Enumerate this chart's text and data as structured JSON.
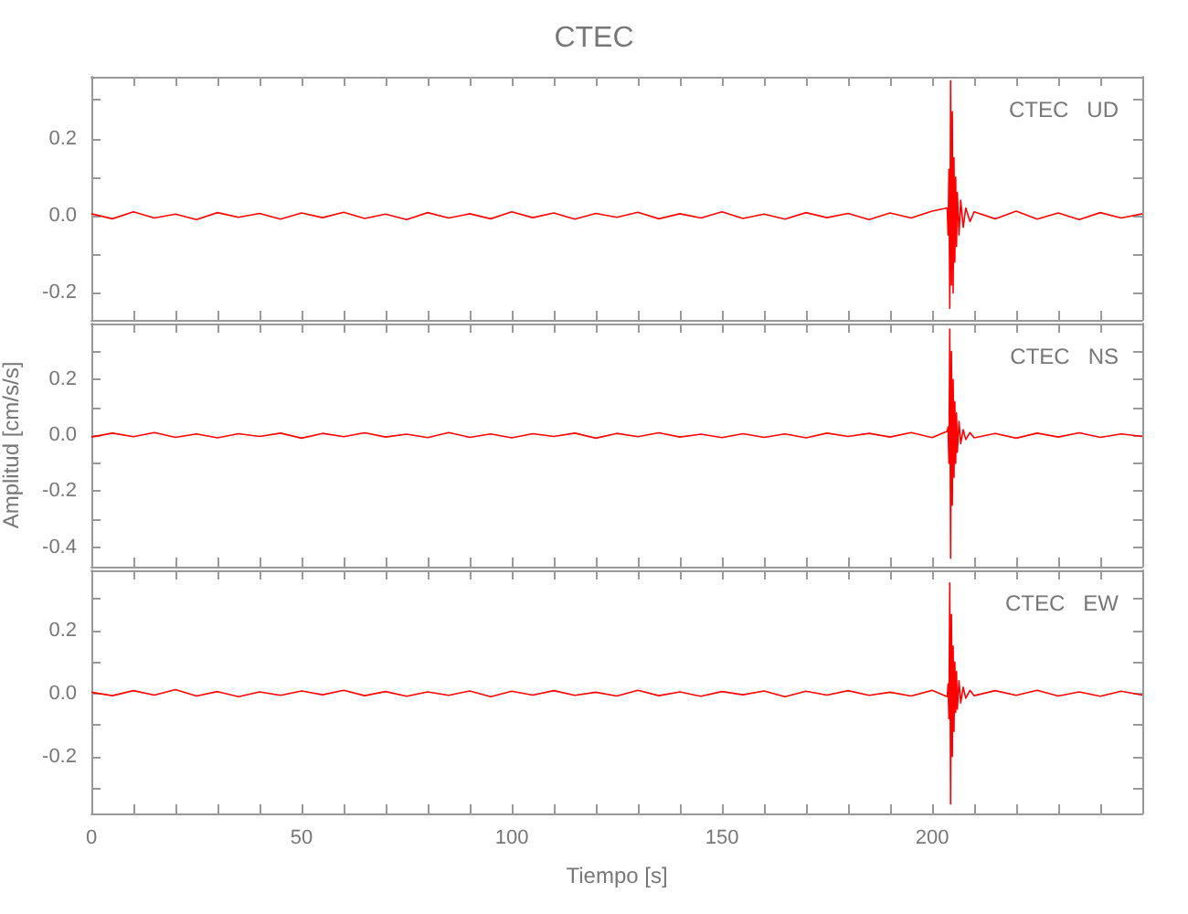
{
  "chart_data": [
    {
      "type": "line",
      "title": "CTEC",
      "annotations": [
        "CTEC   UD"
      ],
      "tick_labels": "y",
      "grid": false,
      "x": [
        0,
        5,
        10,
        15,
        20,
        25,
        30,
        35,
        40,
        45,
        50,
        55,
        60,
        65,
        70,
        75,
        80,
        85,
        90,
        95,
        100,
        105,
        110,
        115,
        120,
        125,
        130,
        135,
        140,
        145,
        150,
        155,
        160,
        165,
        170,
        175,
        180,
        185,
        190,
        195,
        200,
        203.6,
        203.8,
        204,
        204.2,
        204.4,
        204.6,
        204.8,
        205,
        205.2,
        205.4,
        205.6,
        205.8,
        206,
        206.4,
        206.8,
        207.4,
        208,
        209,
        210,
        215,
        220,
        225,
        230,
        235,
        240,
        245,
        250
      ],
      "series": [
        {
          "color": "#ff0000",
          "values": [
            0.005,
            -0.008,
            0.01,
            -0.006,
            0.004,
            -0.01,
            0.008,
            -0.004,
            0.006,
            -0.009,
            0.007,
            -0.005,
            0.009,
            -0.007,
            0.004,
            -0.01,
            0.008,
            -0.006,
            0.005,
            -0.008,
            0.01,
            -0.005,
            0.007,
            -0.009,
            0.006,
            -0.004,
            0.009,
            -0.008,
            0.005,
            -0.006,
            0.01,
            -0.007,
            0.004,
            -0.009,
            0.008,
            -0.005,
            0.006,
            -0.01,
            0.007,
            -0.006,
            0.012,
            0.02,
            -0.05,
            0.12,
            -0.24,
            0.35,
            -0.18,
            0.27,
            -0.2,
            0.15,
            -0.12,
            0.1,
            -0.08,
            0.06,
            -0.05,
            0.04,
            -0.03,
            0.02,
            -0.015,
            0.01,
            -0.008,
            0.012,
            -0.009,
            0.007,
            -0.01,
            0.008,
            -0.006,
            0.005
          ]
        }
      ],
      "xlim": [
        0,
        250
      ],
      "xticks": [
        0,
        {
          "value": 10,
          "label": null
        },
        {
          "value": 20,
          "label": null
        },
        {
          "value": 30,
          "label": null
        },
        {
          "value": 40,
          "label": null
        },
        50,
        {
          "value": 60,
          "label": null
        },
        {
          "value": 70,
          "label": null
        },
        {
          "value": 80,
          "label": null
        },
        {
          "value": 90,
          "label": null
        },
        100,
        {
          "value": 110,
          "label": null
        },
        {
          "value": 120,
          "label": null
        },
        {
          "value": 130,
          "label": null
        },
        {
          "value": 140,
          "label": null
        },
        150,
        {
          "value": 160,
          "label": null
        },
        {
          "value": 170,
          "label": null
        },
        {
          "value": 180,
          "label": null
        },
        {
          "value": 190,
          "label": null
        },
        200,
        {
          "value": 210,
          "label": null
        },
        {
          "value": 220,
          "label": null
        },
        {
          "value": 230,
          "label": null
        },
        {
          "value": 240,
          "label": null
        }
      ],
      "ylim": [
        -0.27,
        0.36
      ],
      "yticks": [
        -0.2,
        {
          "value": -0.1,
          "label": null
        },
        {
          "value": 0,
          "label": "0.0"
        },
        {
          "value": 0.1,
          "label": null
        },
        0.2,
        {
          "value": 0.3,
          "label": null
        }
      ]
    },
    {
      "type": "line",
      "ylabel": "Amplitud [cm/s/s]",
      "annotations": [
        "CTEC   NS"
      ],
      "tick_labels": "y",
      "grid": false,
      "x": [
        0,
        5,
        10,
        15,
        20,
        25,
        30,
        35,
        40,
        45,
        50,
        55,
        60,
        65,
        70,
        75,
        80,
        85,
        90,
        95,
        100,
        105,
        110,
        115,
        120,
        125,
        130,
        135,
        140,
        145,
        150,
        155,
        160,
        165,
        170,
        175,
        180,
        185,
        190,
        195,
        200,
        203.6,
        203.8,
        204,
        204.2,
        204.4,
        204.6,
        204.8,
        205,
        205.2,
        205.4,
        205.6,
        205.8,
        206,
        206.4,
        206.8,
        207.4,
        208,
        209,
        210,
        215,
        220,
        225,
        230,
        235,
        240,
        245,
        250
      ],
      "series": [
        {
          "color": "#ff0000",
          "values": [
            -0.006,
            0.008,
            -0.005,
            0.01,
            -0.007,
            0.005,
            -0.009,
            0.006,
            -0.004,
            0.008,
            -0.01,
            0.007,
            -0.005,
            0.009,
            -0.006,
            0.004,
            -0.008,
            0.01,
            -0.007,
            0.005,
            -0.009,
            0.006,
            -0.004,
            0.008,
            -0.01,
            0.007,
            -0.005,
            0.009,
            -0.006,
            0.004,
            -0.008,
            0.006,
            -0.007,
            0.005,
            -0.009,
            0.008,
            -0.004,
            0.007,
            -0.006,
            0.01,
            -0.008,
            0.015,
            0.03,
            -0.1,
            0.38,
            -0.44,
            0.3,
            -0.25,
            0.2,
            -0.15,
            0.12,
            -0.1,
            0.08,
            -0.06,
            0.05,
            -0.03,
            0.02,
            -0.015,
            0.01,
            -0.009,
            0.007,
            -0.01,
            0.008,
            -0.006,
            0.009,
            -0.007,
            0.005,
            -0.004
          ]
        }
      ],
      "xlim": [
        0,
        250
      ],
      "xticks": [
        0,
        {
          "value": 10,
          "label": null
        },
        {
          "value": 20,
          "label": null
        },
        {
          "value": 30,
          "label": null
        },
        {
          "value": 40,
          "label": null
        },
        50,
        {
          "value": 60,
          "label": null
        },
        {
          "value": 70,
          "label": null
        },
        {
          "value": 80,
          "label": null
        },
        {
          "value": 90,
          "label": null
        },
        100,
        {
          "value": 110,
          "label": null
        },
        {
          "value": 120,
          "label": null
        },
        {
          "value": 130,
          "label": null
        },
        {
          "value": 140,
          "label": null
        },
        150,
        {
          "value": 160,
          "label": null
        },
        {
          "value": 170,
          "label": null
        },
        {
          "value": 180,
          "label": null
        },
        {
          "value": 190,
          "label": null
        },
        200,
        {
          "value": 210,
          "label": null
        },
        {
          "value": 220,
          "label": null
        },
        {
          "value": 230,
          "label": null
        },
        {
          "value": 240,
          "label": null
        }
      ],
      "ylim": [
        -0.47,
        0.4
      ],
      "yticks": [
        -0.4,
        {
          "value": -0.3,
          "label": null
        },
        -0.2,
        {
          "value": -0.1,
          "label": null
        },
        {
          "value": 0,
          "label": "0.0"
        },
        {
          "value": 0.1,
          "label": null
        },
        0.2,
        {
          "value": 0.3,
          "label": null
        }
      ]
    },
    {
      "type": "line",
      "xlabel": "Tiempo [s]",
      "annotations": [
        "CTEC   EW"
      ],
      "grid": false,
      "x": [
        0,
        5,
        10,
        15,
        20,
        25,
        30,
        35,
        40,
        45,
        50,
        55,
        60,
        65,
        70,
        75,
        80,
        85,
        90,
        95,
        100,
        105,
        110,
        115,
        120,
        125,
        130,
        135,
        140,
        145,
        150,
        155,
        160,
        165,
        170,
        175,
        180,
        185,
        190,
        195,
        200,
        203.6,
        203.8,
        204,
        204.2,
        204.4,
        204.6,
        204.8,
        205,
        205.2,
        205.4,
        205.6,
        205.8,
        206,
        206.4,
        206.8,
        207.4,
        208,
        209,
        210,
        215,
        220,
        225,
        230,
        235,
        240,
        245,
        250
      ],
      "series": [
        {
          "color": "#ff0000",
          "values": [
            0.004,
            -0.007,
            0.009,
            -0.005,
            0.012,
            -0.008,
            0.006,
            -0.01,
            0.005,
            -0.006,
            0.008,
            -0.004,
            0.01,
            -0.007,
            0.006,
            -0.009,
            0.005,
            -0.006,
            0.008,
            -0.01,
            0.007,
            -0.005,
            0.009,
            -0.006,
            0.004,
            -0.008,
            0.01,
            -0.007,
            0.005,
            -0.009,
            0.006,
            -0.004,
            0.008,
            -0.01,
            0.007,
            -0.005,
            0.009,
            -0.006,
            0.004,
            -0.008,
            0.01,
            -0.01,
            0.03,
            -0.08,
            0.35,
            -0.35,
            0.25,
            -0.2,
            0.15,
            -0.12,
            0.1,
            -0.06,
            0.07,
            -0.05,
            0.04,
            -0.03,
            0.02,
            -0.015,
            0.01,
            -0.007,
            0.009,
            -0.006,
            0.01,
            -0.008,
            0.005,
            -0.009,
            0.007,
            -0.005
          ]
        }
      ],
      "xlim": [
        0,
        250
      ],
      "xticks": [
        0,
        {
          "value": 10,
          "label": null
        },
        {
          "value": 20,
          "label": null
        },
        {
          "value": 30,
          "label": null
        },
        {
          "value": 40,
          "label": null
        },
        50,
        {
          "value": 60,
          "label": null
        },
        {
          "value": 70,
          "label": null
        },
        {
          "value": 80,
          "label": null
        },
        {
          "value": 90,
          "label": null
        },
        100,
        {
          "value": 110,
          "label": null
        },
        {
          "value": 120,
          "label": null
        },
        {
          "value": 130,
          "label": null
        },
        {
          "value": 140,
          "label": null
        },
        150,
        {
          "value": 160,
          "label": null
        },
        {
          "value": 170,
          "label": null
        },
        {
          "value": 180,
          "label": null
        },
        {
          "value": 190,
          "label": null
        },
        200,
        {
          "value": 210,
          "label": null
        },
        {
          "value": 220,
          "label": null
        },
        {
          "value": 230,
          "label": null
        },
        {
          "value": 240,
          "label": null
        }
      ],
      "ylim": [
        -0.38,
        0.39
      ],
      "yticks": [
        {
          "value": -0.3,
          "label": null
        },
        -0.2,
        {
          "value": -0.1,
          "label": null
        },
        {
          "value": 0,
          "label": "0.0"
        },
        {
          "value": 0.1,
          "label": null
        },
        0.2,
        {
          "value": 0.3,
          "label": null
        }
      ]
    }
  ]
}
